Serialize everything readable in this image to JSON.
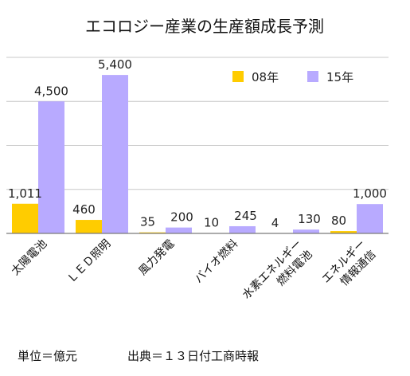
{
  "chart_data": {
    "type": "bar",
    "title": "エコロジー産業の生産額成長予測",
    "categories": [
      [
        "太陽電池"
      ],
      [
        "ＬＥＤ照明"
      ],
      [
        "風力発電"
      ],
      [
        "バイオ燃料"
      ],
      [
        "水素エネルギー",
        "燃料電池"
      ],
      [
        "エネルギー",
        "情報通信"
      ]
    ],
    "series": [
      {
        "name": "08年",
        "color": "#ffcc00",
        "values": [
          1011,
          460,
          35,
          10,
          4,
          80
        ],
        "labels": [
          "1,011",
          "460",
          "35",
          "10",
          "4",
          "80"
        ]
      },
      {
        "name": "15年",
        "color": "#b8aaff",
        "values": [
          4500,
          5400,
          200,
          245,
          130,
          1000
        ],
        "labels": [
          "4,500",
          "5,400",
          "200",
          "245",
          "130",
          "1,000"
        ]
      }
    ],
    "ylim": [
      0,
      6000
    ],
    "grid": true,
    "legend": "top-right"
  },
  "footer": {
    "unit": "単位＝億元",
    "source": "出典＝１３日付工商時報"
  }
}
